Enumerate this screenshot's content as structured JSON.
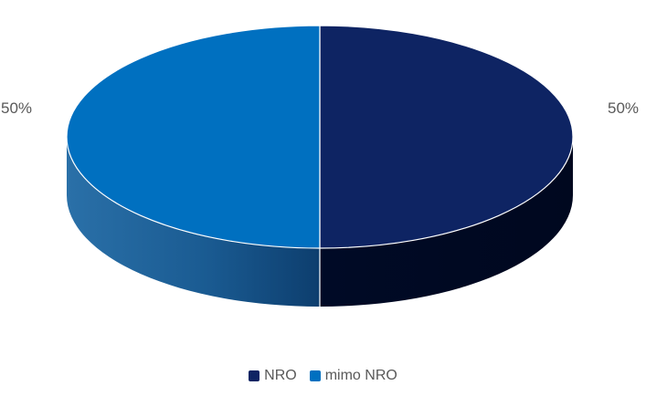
{
  "chart_data": {
    "type": "pie",
    "style": "3d",
    "categories": [
      "NRO",
      "mimo NRO"
    ],
    "values": [
      50,
      50
    ],
    "data_labels": [
      "50%",
      "50%"
    ],
    "colors": {
      "NRO": "#0e2463",
      "mimo NRO": "#0070c0"
    },
    "legend_position": "bottom"
  }
}
